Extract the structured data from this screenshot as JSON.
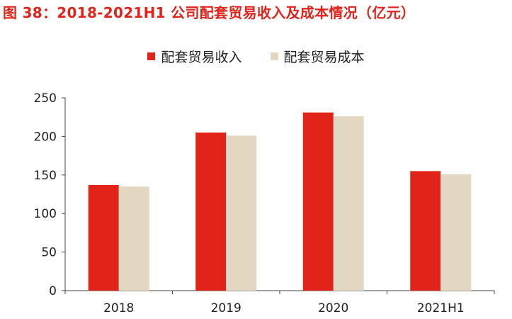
{
  "title": "图 38：2018-2021H1 公司配套贸易收入及成本情况（亿元）",
  "colors": {
    "revenue": "#e2231a",
    "cost": "#e3d7c1",
    "title": "#e0241b"
  },
  "chart_data": {
    "type": "bar",
    "categories": [
      "2018",
      "2019",
      "2020",
      "2021H1"
    ],
    "series": [
      {
        "name": "配套贸易收入",
        "values": [
          137,
          205,
          231,
          155
        ]
      },
      {
        "name": "配套贸易成本",
        "values": [
          135,
          201,
          226,
          151
        ]
      }
    ],
    "ylim": [
      0,
      250
    ],
    "yticks": [
      0,
      50,
      100,
      150,
      200,
      250
    ],
    "legend": "top-center",
    "grid": false
  }
}
